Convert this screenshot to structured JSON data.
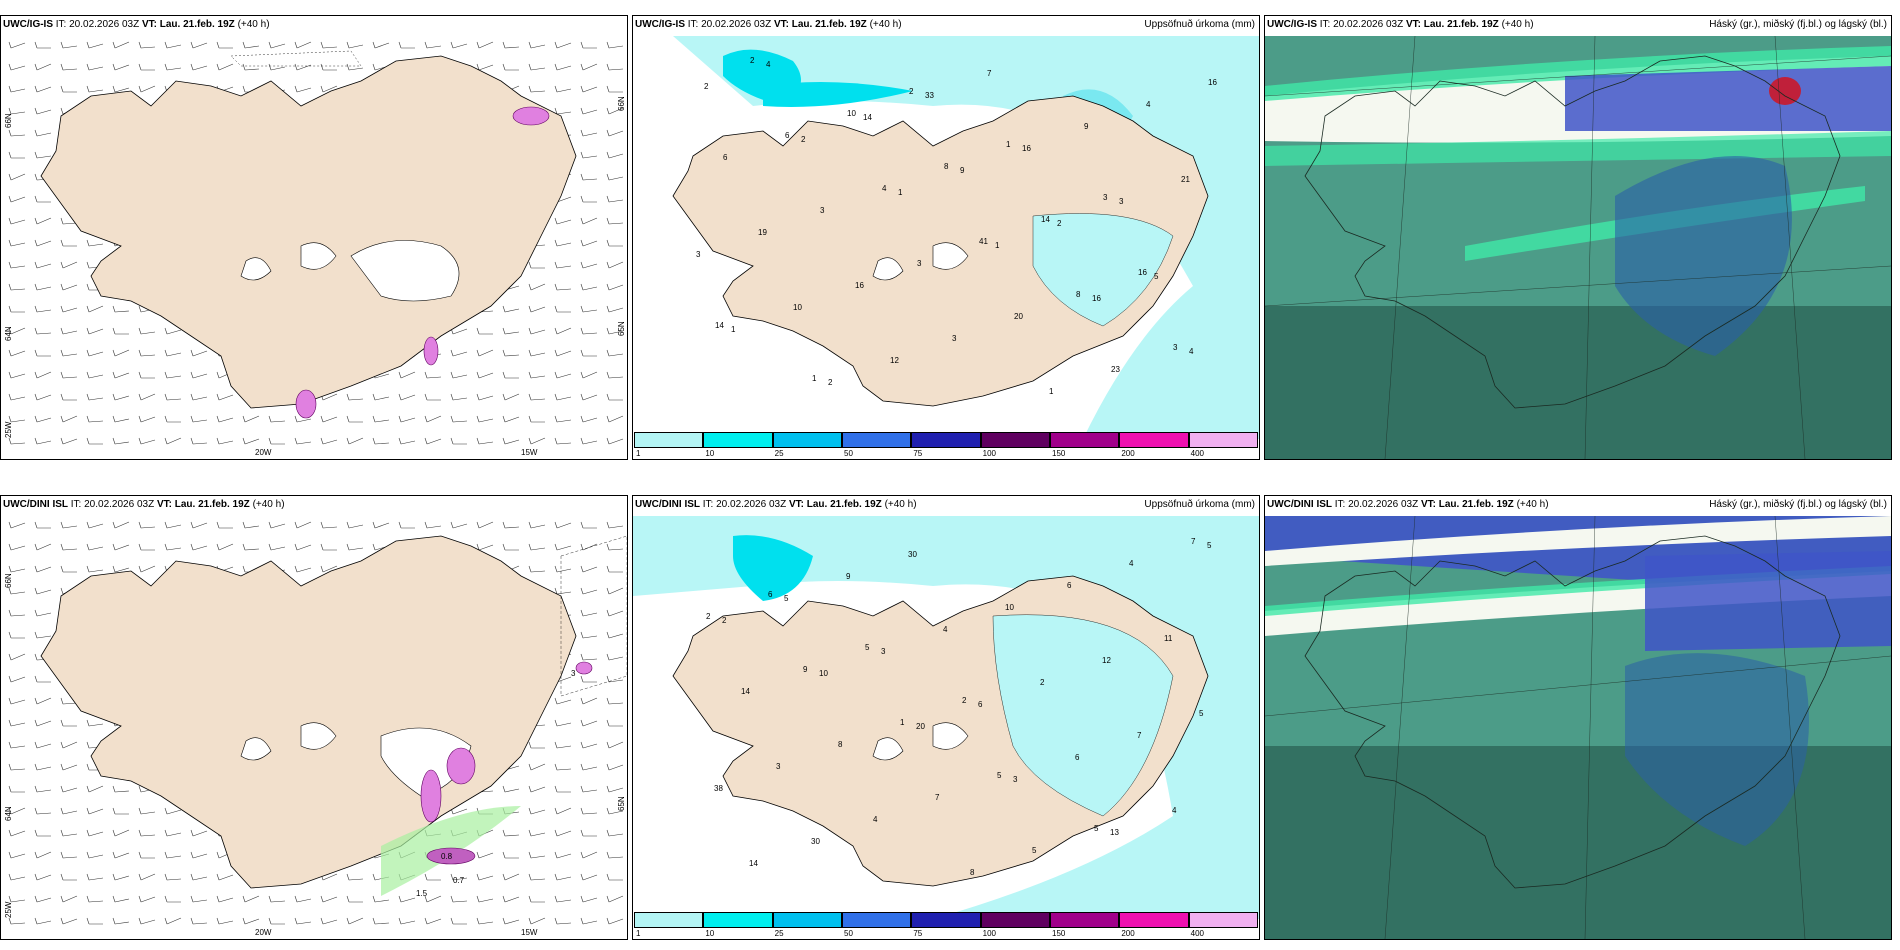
{
  "rows": [
    {
      "model": "UWC/IG-IS",
      "it_label": "IT:",
      "it_value": "20.02.2026 03Z",
      "vt_label": "VT:",
      "vt_value": "Lau. 21.feb. 19Z",
      "lead": "(+40 h)"
    },
    {
      "model": "UWC/DINI ISL",
      "it_label": "IT:",
      "it_value": "20.02.2026 03Z",
      "vt_label": "VT:",
      "vt_value": "Lau. 21.feb. 19Z",
      "lead": "(+40 h)"
    }
  ],
  "precip_title": "Uppsöfnuð úrkoma (mm)",
  "cloud_title": "Háský (gr.), miðský (fj.bl.) og lágský (bl.)",
  "axis_labels": {
    "lon_20w": "20W",
    "lon_15w": "15W",
    "lat_66n": "66N",
    "lat_64n": "64N",
    "lat_25w": "25W",
    "lat_65n_r": "65N",
    "lat_66n_r": "66N"
  },
  "colorbar": {
    "labels": [
      "1",
      "10",
      "25",
      "50",
      "75",
      "100",
      "150",
      "200",
      "400"
    ],
    "colors": [
      "#b3f5f5",
      "#00eeee",
      "#00c0ee",
      "#3070e8",
      "#2020b0",
      "#600060",
      "#a0008a",
      "#ee10b0",
      "#f0b0f0"
    ]
  },
  "colors": {
    "land": "#f2e0cc",
    "precip_light": "#b8f6f6",
    "precip_mid": "#00e0ee",
    "cloud_base": "#4c9c88",
    "cloud_high": "#2f6a5c",
    "cloud_mid_blue": "#4055c8",
    "cloud_band": "#40e8a8"
  },
  "precip_values_top": [
    "2",
    "2",
    "1",
    "1",
    "16",
    "4",
    "4",
    "14",
    "9",
    "2",
    "5",
    "1",
    "2",
    "33",
    "16",
    "3",
    "3",
    "10",
    "12",
    "7",
    "9",
    "21",
    "19",
    "16",
    "3",
    "1",
    "4",
    "6",
    "3",
    "3",
    "20",
    "23",
    "16",
    "6",
    "4",
    "41",
    "8",
    "3",
    "2",
    "10",
    "8",
    "14",
    "16",
    "14",
    "1",
    "2",
    "1",
    "3"
  ],
  "precip_values_bottom": [
    "2",
    "10",
    "20",
    "3",
    "13",
    "5",
    "5",
    "3",
    "6",
    "6",
    "4",
    "14",
    "9",
    "4",
    "2",
    "7",
    "38",
    "30",
    "30",
    "10",
    "12",
    "5",
    "3",
    "4",
    "8",
    "6",
    "11",
    "14",
    "8",
    "7",
    "5",
    "4",
    "2",
    "9",
    "1",
    "5",
    "5",
    "7",
    "6",
    "5",
    "2"
  ],
  "wind_labels_bottom": [
    "3",
    "0.7",
    "0.8",
    "1.5"
  ]
}
